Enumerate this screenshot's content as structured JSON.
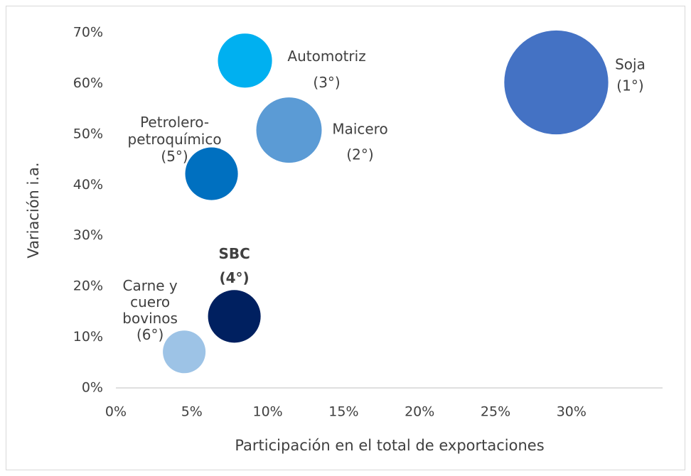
{
  "chart_data": {
    "type": "bubble",
    "x_label": "Participación en el total de exportaciones",
    "y_label": "Variación i.a.",
    "xlim": [
      0,
      36
    ],
    "ylim": [
      0,
      70
    ],
    "xticks": [
      {
        "value": 0,
        "label": "0%"
      },
      {
        "value": 5,
        "label": "5%"
      },
      {
        "value": 10,
        "label": "10%"
      },
      {
        "value": 15,
        "label": "15%"
      },
      {
        "value": 20,
        "label": "20%"
      },
      {
        "value": 25,
        "label": "25%"
      },
      {
        "value": 30,
        "label": "30%"
      }
    ],
    "yticks": [
      {
        "value": 0,
        "label": "0%"
      },
      {
        "value": 10,
        "label": "10%"
      },
      {
        "value": 20,
        "label": "20%"
      },
      {
        "value": 30,
        "label": "30%"
      },
      {
        "value": 40,
        "label": "40%"
      },
      {
        "value": 50,
        "label": "50%"
      },
      {
        "value": 60,
        "label": "60%"
      },
      {
        "value": 70,
        "label": "70%"
      }
    ],
    "grid": false,
    "points": [
      {
        "label": [
          "Soja",
          "(1°)"
        ],
        "x": 29,
        "y": 60.2,
        "size": 27.3,
        "color": "#4472c4"
      },
      {
        "label": [
          "Maicero",
          "(2°)"
        ],
        "x": 11.4,
        "y": 50.8,
        "size": 10.8,
        "color": "#5b9bd5"
      },
      {
        "label": [
          "Automotriz",
          "(3°)"
        ],
        "x": 8.5,
        "y": 64.5,
        "size": 7.4,
        "color": "#00b0f0"
      },
      {
        "label": [
          "SBC",
          "(4°)"
        ],
        "x": 7.8,
        "y": 14.1,
        "size": 7.0,
        "color": "#002060"
      },
      {
        "label": [
          "Petrolero-",
          "petroquímico",
          "(5°)"
        ],
        "x": 6.3,
        "y": 42.2,
        "size": 7.0,
        "color": "#0070c0"
      },
      {
        "label": [
          "Carne y",
          "cuero",
          "bovinos",
          "(6°)"
        ],
        "x": 4.5,
        "y": 7.1,
        "size": 4.6,
        "color": "#9dc3e6"
      }
    ]
  }
}
